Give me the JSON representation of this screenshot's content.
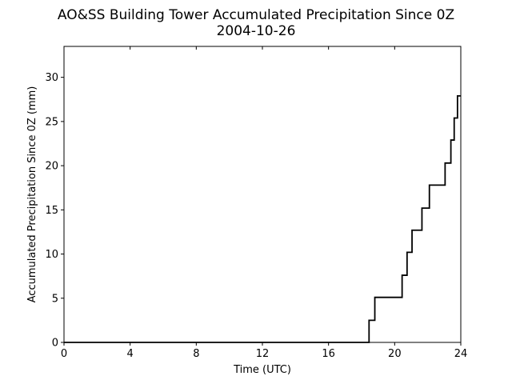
{
  "chart_data": {
    "type": "line",
    "title": "AO&SS Building Tower Accumulated Precipitation Since 0Z",
    "subtitle": "2004-10-26",
    "xlabel": "Time (UTC)",
    "ylabel": "Accumulated Precipitation Since 0Z (mm)",
    "xlim": [
      0,
      24
    ],
    "ylim": [
      0,
      33.5
    ],
    "xticks": [
      0,
      4,
      8,
      12,
      16,
      20,
      24
    ],
    "yticks": [
      0,
      5,
      10,
      15,
      20,
      25,
      30
    ],
    "grid": false,
    "line_color": "#000000",
    "step": true,
    "series": [
      {
        "x": [
          0,
          18.45,
          18.8,
          20.45,
          20.75,
          21.05,
          21.65,
          22.1,
          23.05,
          23.4,
          23.6,
          23.8,
          24
        ],
        "y": [
          0,
          2.5,
          5.1,
          7.6,
          10.2,
          12.7,
          15.2,
          17.8,
          20.3,
          22.9,
          25.4,
          27.9,
          27.9
        ]
      }
    ]
  }
}
